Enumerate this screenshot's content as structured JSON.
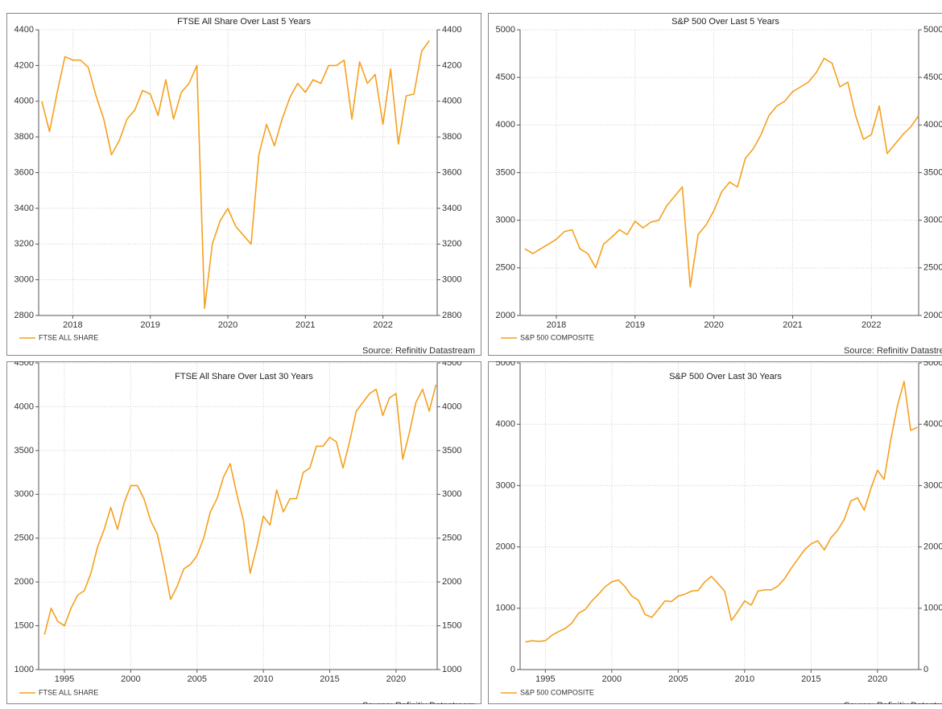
{
  "chart_data": [
    {
      "type": "line",
      "title": "FTSE All Share Over Last 5 Years",
      "source": "Source: Refinitiv Datastream",
      "x": [
        2018.1,
        2018.2,
        2018.3,
        2018.4,
        2018.5,
        2018.6,
        2018.7,
        2018.8,
        2018.9,
        2019.0,
        2019.1,
        2019.2,
        2019.3,
        2019.4,
        2019.5,
        2019.6,
        2019.7,
        2019.8,
        2019.9,
        2020.0,
        2020.1,
        2020.2,
        2020.3,
        2020.4,
        2020.5,
        2020.6,
        2020.7,
        2020.8,
        2020.9,
        2021.0,
        2021.1,
        2021.2,
        2021.3,
        2021.4,
        2021.5,
        2021.6,
        2021.7,
        2021.8,
        2021.9,
        2022.0,
        2022.1,
        2022.2,
        2022.3,
        2022.4,
        2022.5,
        2022.6,
        2022.7,
        2022.8,
        2022.9,
        2023.0,
        2023.1
      ],
      "series": [
        {
          "name": "FTSE ALL SHARE",
          "color": "#f5a01e",
          "values": [
            4000,
            3830,
            4050,
            4250,
            4230,
            4230,
            4190,
            4030,
            3900,
            3700,
            3780,
            3900,
            3950,
            4060,
            4040,
            3920,
            4120,
            3900,
            4050,
            4100,
            4200,
            2840,
            3200,
            3330,
            3400,
            3300,
            3250,
            3200,
            3700,
            3870,
            3750,
            3900,
            4020,
            4100,
            4050,
            4120,
            4100,
            4200,
            4200,
            4230,
            3900,
            4220,
            4100,
            4150,
            3870,
            4180,
            3760,
            4030,
            4040,
            4280,
            4340
          ]
        }
      ],
      "xlim": [
        2018.06,
        2023.2
      ],
      "xticks": [
        {
          "value": 2018.5,
          "label": "2018"
        },
        {
          "value": 2019.5,
          "label": "2019"
        },
        {
          "value": 2020.5,
          "label": "2020"
        },
        {
          "value": 2021.5,
          "label": "2021"
        },
        {
          "value": 2022.5,
          "label": "2022"
        }
      ],
      "ylim": [
        2800,
        4400
      ],
      "yticks": [
        2800,
        3000,
        3200,
        3400,
        3600,
        3800,
        4000,
        4200,
        4400
      ],
      "grid": true
    },
    {
      "type": "line",
      "title": "S&P 500 Over Last 5 Years",
      "source": "Source: Refinitiv Datastream",
      "x": [
        2018.1,
        2018.2,
        2018.3,
        2018.4,
        2018.5,
        2018.6,
        2018.7,
        2018.8,
        2018.9,
        2019.0,
        2019.1,
        2019.2,
        2019.3,
        2019.4,
        2019.5,
        2019.6,
        2019.7,
        2019.8,
        2019.9,
        2020.0,
        2020.1,
        2020.2,
        2020.3,
        2020.4,
        2020.5,
        2020.6,
        2020.7,
        2020.8,
        2020.9,
        2021.0,
        2021.1,
        2021.2,
        2021.3,
        2021.4,
        2021.5,
        2021.6,
        2021.7,
        2021.8,
        2021.9,
        2022.0,
        2022.1,
        2022.2,
        2022.3,
        2022.4,
        2022.5,
        2022.6,
        2022.7,
        2022.8,
        2022.9,
        2023.0,
        2023.1
      ],
      "series": [
        {
          "name": "S&P 500 COMPOSITE",
          "color": "#f5a01e",
          "values": [
            2700,
            2650,
            2700,
            2750,
            2800,
            2880,
            2900,
            2700,
            2650,
            2500,
            2750,
            2820,
            2900,
            2850,
            2990,
            2920,
            2980,
            3000,
            3150,
            3250,
            3350,
            2300,
            2850,
            2950,
            3100,
            3300,
            3400,
            3350,
            3650,
            3750,
            3900,
            4100,
            4200,
            4250,
            4350,
            4400,
            4450,
            4550,
            4700,
            4650,
            4400,
            4450,
            4100,
            3850,
            3900,
            4200,
            3700,
            3800,
            3900,
            3980,
            4100
          ]
        }
      ],
      "xlim": [
        2018.04,
        2023.1
      ],
      "xticks": [
        {
          "value": 2018.5,
          "label": "2018"
        },
        {
          "value": 2019.5,
          "label": "2019"
        },
        {
          "value": 2020.5,
          "label": "2020"
        },
        {
          "value": 2021.5,
          "label": "2021"
        },
        {
          "value": 2022.5,
          "label": "2022"
        }
      ],
      "ylim": [
        2000,
        5000
      ],
      "yticks": [
        2000,
        2500,
        3000,
        3500,
        4000,
        4500,
        5000
      ],
      "grid": true
    },
    {
      "type": "line",
      "title": "FTSE All Share Over Last 30 Years",
      "source": "Source: Refinitiv Datastream",
      "x": [
        1993.5,
        1994.0,
        1994.5,
        1995.0,
        1995.5,
        1996.0,
        1996.5,
        1997.0,
        1997.5,
        1998.0,
        1998.5,
        1999.0,
        1999.5,
        2000.0,
        2000.5,
        2001.0,
        2001.5,
        2002.0,
        2002.5,
        2003.0,
        2003.5,
        2004.0,
        2004.5,
        2005.0,
        2005.5,
        2006.0,
        2006.5,
        2007.0,
        2007.5,
        2008.0,
        2008.5,
        2009.0,
        2009.5,
        2010.0,
        2010.5,
        2011.0,
        2011.5,
        2012.0,
        2012.5,
        2013.0,
        2013.5,
        2014.0,
        2014.5,
        2015.0,
        2015.5,
        2016.0,
        2016.5,
        2017.0,
        2017.5,
        2018.0,
        2018.5,
        2019.0,
        2019.5,
        2020.0,
        2020.5,
        2021.0,
        2021.5,
        2022.0,
        2022.5,
        2023.0
      ],
      "series": [
        {
          "name": "FTSE ALL SHARE",
          "color": "#f5a01e",
          "values": [
            1400,
            1700,
            1550,
            1500,
            1700,
            1850,
            1900,
            2100,
            2400,
            2600,
            2850,
            2600,
            2900,
            3100,
            3100,
            2950,
            2700,
            2550,
            2200,
            1800,
            1950,
            2150,
            2200,
            2300,
            2500,
            2800,
            2950,
            3200,
            3350,
            3000,
            2700,
            2100,
            2400,
            2750,
            2650,
            3050,
            2800,
            2950,
            2950,
            3250,
            3300,
            3550,
            3550,
            3650,
            3600,
            3300,
            3600,
            3950,
            4050,
            4150,
            4200,
            3900,
            4100,
            4150,
            3400,
            3700,
            4050,
            4200,
            3950,
            4250
          ]
        }
      ],
      "xlim": [
        1993.06,
        2023.1
      ],
      "xticks": [
        1995,
        2000,
        2005,
        2010,
        2015,
        2020
      ],
      "ylim": [
        1000,
        4500
      ],
      "yticks": [
        1000,
        1500,
        2000,
        2500,
        3000,
        3500,
        4000,
        4500
      ],
      "grid": true
    },
    {
      "type": "line",
      "title": "S&P 500 Over Last 30 Years",
      "source": "Source: Refinitiv Datastream",
      "x": [
        1993.5,
        1994.0,
        1994.5,
        1995.0,
        1995.5,
        1996.0,
        1996.5,
        1997.0,
        1997.5,
        1998.0,
        1998.5,
        1999.0,
        1999.5,
        2000.0,
        2000.5,
        2001.0,
        2001.5,
        2002.0,
        2002.5,
        2003.0,
        2003.5,
        2004.0,
        2004.5,
        2005.0,
        2005.5,
        2006.0,
        2006.5,
        2007.0,
        2007.5,
        2008.0,
        2008.5,
        2009.0,
        2009.5,
        2010.0,
        2010.5,
        2011.0,
        2011.5,
        2012.0,
        2012.5,
        2013.0,
        2013.5,
        2014.0,
        2014.5,
        2015.0,
        2015.5,
        2016.0,
        2016.5,
        2017.0,
        2017.5,
        2018.0,
        2018.5,
        2019.0,
        2019.5,
        2020.0,
        2020.5,
        2021.0,
        2021.5,
        2022.0,
        2022.5,
        2023.0
      ],
      "series": [
        {
          "name": "S&P 500 COMPOSITE",
          "color": "#f5a01e",
          "values": [
            450,
            470,
            460,
            470,
            560,
            620,
            670,
            760,
            920,
            980,
            1120,
            1230,
            1350,
            1430,
            1460,
            1350,
            1200,
            1130,
            900,
            850,
            980,
            1120,
            1110,
            1200,
            1230,
            1280,
            1290,
            1430,
            1520,
            1400,
            1280,
            800,
            950,
            1120,
            1050,
            1280,
            1300,
            1300,
            1360,
            1480,
            1650,
            1800,
            1950,
            2050,
            2100,
            1950,
            2150,
            2270,
            2450,
            2750,
            2800,
            2600,
            2950,
            3250,
            3100,
            3750,
            4300,
            4700,
            3900,
            3950
          ]
        }
      ],
      "xlim": [
        1993.1,
        2023.1
      ],
      "xticks": [
        1995,
        2000,
        2005,
        2010,
        2015,
        2020
      ],
      "ylim": [
        0,
        5000
      ],
      "yticks": [
        0,
        1000,
        2000,
        3000,
        4000,
        5000
      ],
      "grid": true
    }
  ]
}
